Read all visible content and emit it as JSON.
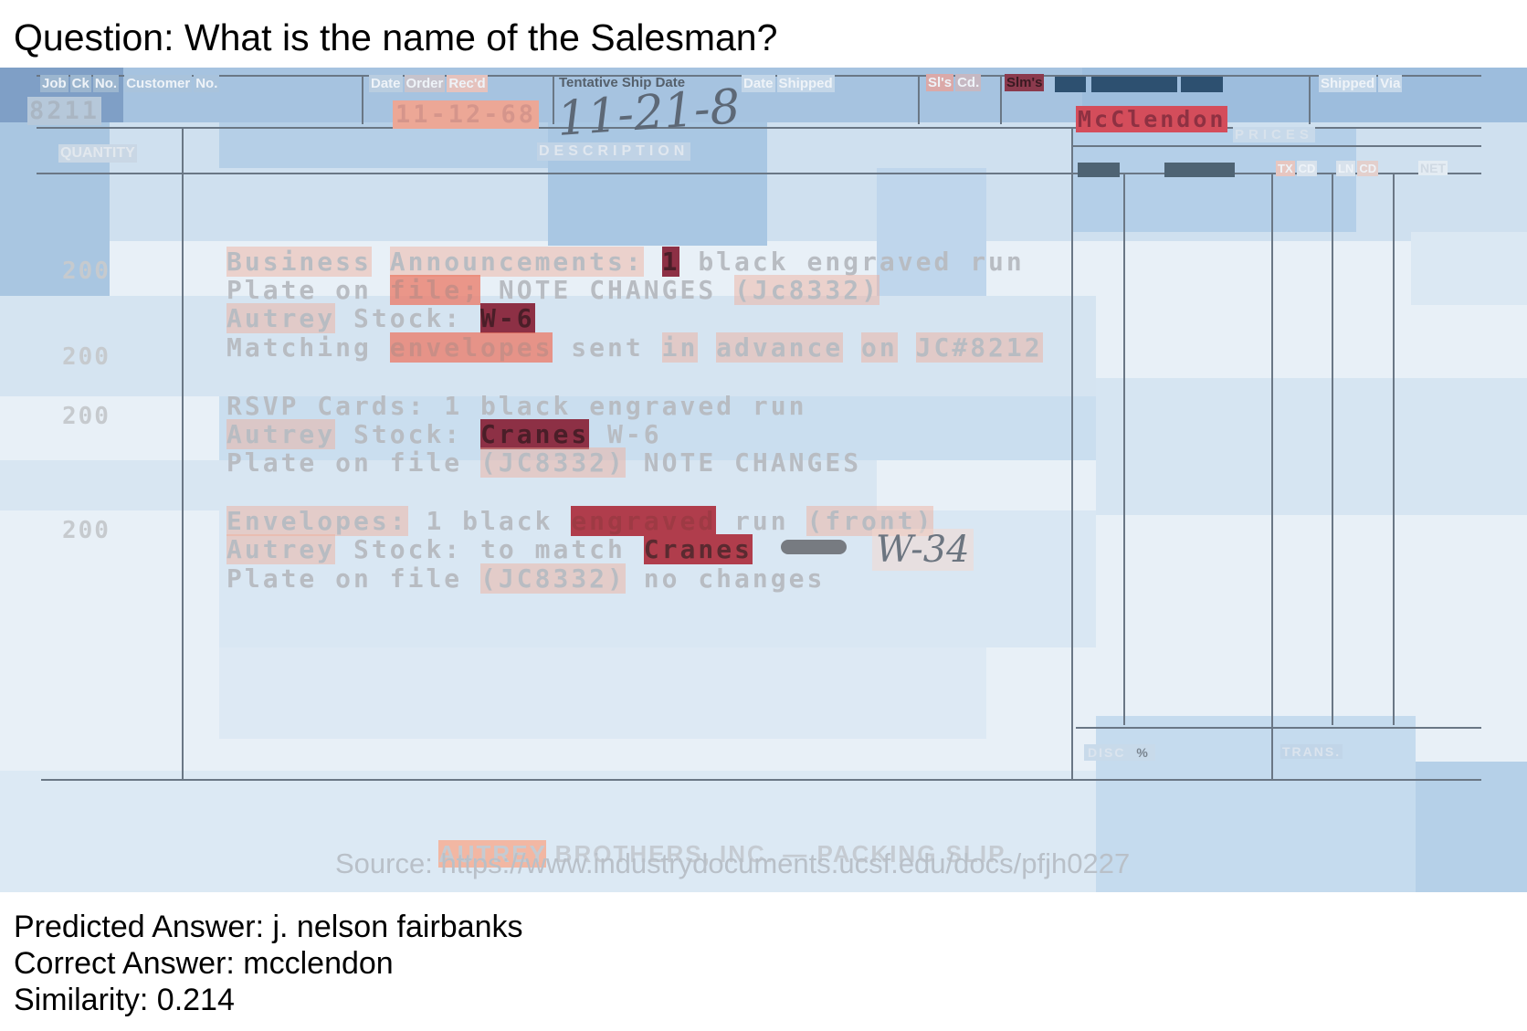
{
  "question": "Question: What is the name of the Salesman?",
  "headers": {
    "job": [
      "Job",
      "Ck",
      "No.",
      "Customer",
      "No."
    ],
    "date_order": [
      "Date",
      "Order",
      "Rec'd"
    ],
    "tentative": "Tentative Ship Date",
    "date_shipped": [
      "Date",
      "Shipped"
    ],
    "sls_cd": [
      "Sl's",
      "Cd."
    ],
    "slms": "Slm's",
    "shipped_via": [
      "Shipped",
      "Via"
    ],
    "quantity": "QUANTITY",
    "description": "DESCRIPTION",
    "prices": "PRICES",
    "tx": "TX",
    "cd1": "CD",
    "ln": "LN",
    "cd2": "CD",
    "net": "NET",
    "disc": "DISC",
    "pct": "%",
    "trans": "TRANS."
  },
  "values": {
    "job_no": "8211",
    "date_received": "11-12-68",
    "ship_date_handwritten": "11-21-8",
    "salesman": "McClendon"
  },
  "lines": [
    {
      "qty": "200",
      "rows": [
        [
          "Business",
          "Announcements:",
          "1",
          "black",
          "engraved",
          "run"
        ],
        [
          "Plate",
          "on",
          "file;",
          "NOTE",
          "CHANGES",
          "(Jc8332)"
        ],
        [
          "Autrey",
          "Stock:",
          "W-6"
        ]
      ]
    },
    {
      "qty": "200",
      "rows": [
        [
          "Matching",
          "envelopes",
          "sent",
          "in",
          "advance",
          "on",
          "JC#8212"
        ]
      ]
    },
    {
      "qty": "200",
      "rows": [
        [
          "RSVP",
          "Cards:",
          "1",
          "black",
          "engraved",
          "run"
        ],
        [
          "Autrey",
          "Stock:",
          "Cranes",
          "W-6"
        ],
        [
          "Plate",
          "on",
          "file",
          "(JC8332)",
          "NOTE",
          "CHANGES"
        ]
      ]
    },
    {
      "qty": "200",
      "rows": [
        [
          "Envelopes:",
          "1",
          "black",
          "engraved",
          "run",
          "(front)"
        ],
        [
          "Autrey",
          "Stock:",
          "to",
          "match",
          "Cranes"
        ],
        [
          "Plate",
          "on",
          "file",
          "(JC8332)",
          "no",
          "changes"
        ]
      ]
    }
  ],
  "handwritten_note": "W-34",
  "footer_title": [
    "AUTREY",
    "BROTHERS, INC. — PACKING SLIP"
  ],
  "source": "Source: https://www.industrydocuments.ucsf.edu/docs/pfjh0227",
  "predicted": "Predicted Answer: j. nelson fairbanks",
  "correct": "Correct Answer: mcclendon",
  "similarity": "Similarity: 0.214"
}
